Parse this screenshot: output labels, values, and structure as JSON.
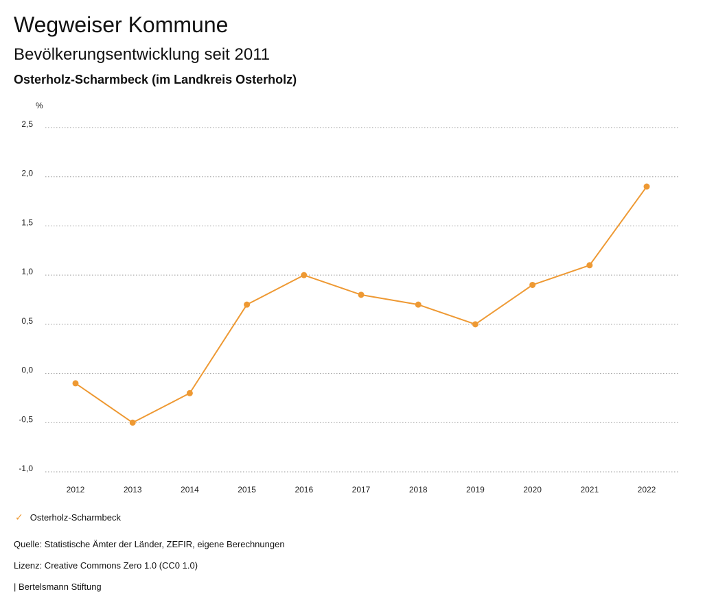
{
  "header": {
    "title": "Wegweiser Kommune",
    "subtitle": "Bevölkerungsentwicklung seit 2011",
    "region": "Osterholz-Scharmbeck (im Landkreis Osterholz)"
  },
  "legend": {
    "label": "Osterholz-Scharmbeck",
    "icon": "check-icon",
    "color": "#ee9933"
  },
  "footer": {
    "source": "Quelle: Statistische Ämter der Länder, ZEFIR, eigene Berechnungen",
    "license": "Lizenz: Creative Commons Zero 1.0 (CC0 1.0)",
    "publisher": "| Bertelsmann Stiftung"
  },
  "chart_data": {
    "type": "line",
    "title": "Bevölkerungsentwicklung seit 2011",
    "subtitle": "Osterholz-Scharmbeck (im Landkreis Osterholz)",
    "ylabel": "%",
    "xlabel": "",
    "x": [
      "2012",
      "2013",
      "2014",
      "2015",
      "2016",
      "2017",
      "2018",
      "2019",
      "2020",
      "2021",
      "2022"
    ],
    "series": [
      {
        "name": "Osterholz-Scharmbeck",
        "color": "#ee9933",
        "values": [
          -0.1,
          -0.5,
          -0.2,
          0.7,
          1.0,
          0.8,
          0.7,
          0.5,
          0.9,
          1.1,
          1.9
        ]
      }
    ],
    "ylim": [
      -1.0,
      2.5
    ],
    "yticks": [
      2.5,
      2.0,
      1.5,
      1.0,
      0.5,
      0.0,
      -0.5,
      -1.0
    ],
    "ytick_labels": [
      "2,5",
      "2,0",
      "1,5",
      "1,0",
      "0,5",
      "0,0",
      "-0,5",
      "-1,0"
    ],
    "grid": true,
    "legend_position": "bottom-left"
  }
}
